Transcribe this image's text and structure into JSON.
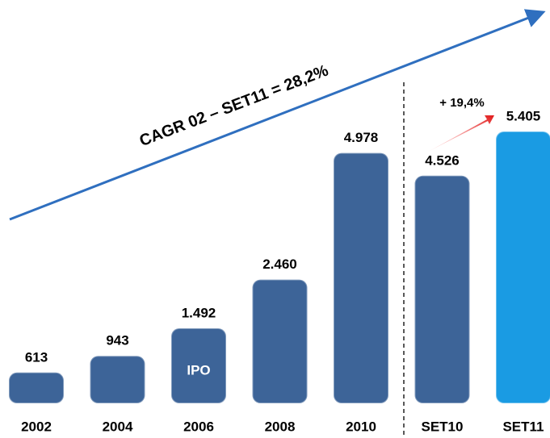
{
  "chart_data": {
    "type": "bar",
    "categories": [
      "2002",
      "2004",
      "2006",
      "2008",
      "2010",
      "SET10",
      "SET11"
    ],
    "values": [
      613,
      943,
      1492,
      2460,
      4978,
      4526,
      5405
    ],
    "value_labels": [
      "613",
      "943",
      "1.492",
      "2.460",
      "4.978",
      "4.526",
      "5.405"
    ],
    "colors": [
      "#3d6498",
      "#3d6498",
      "#3d6498",
      "#3d6498",
      "#3d6498",
      "#3d6498",
      "#1a9be3"
    ],
    "annotations": {
      "cagr": "CAGR 02 – SET11 = 28,2%",
      "growth": "+ 19,4%",
      "ipo": "IPO"
    }
  }
}
